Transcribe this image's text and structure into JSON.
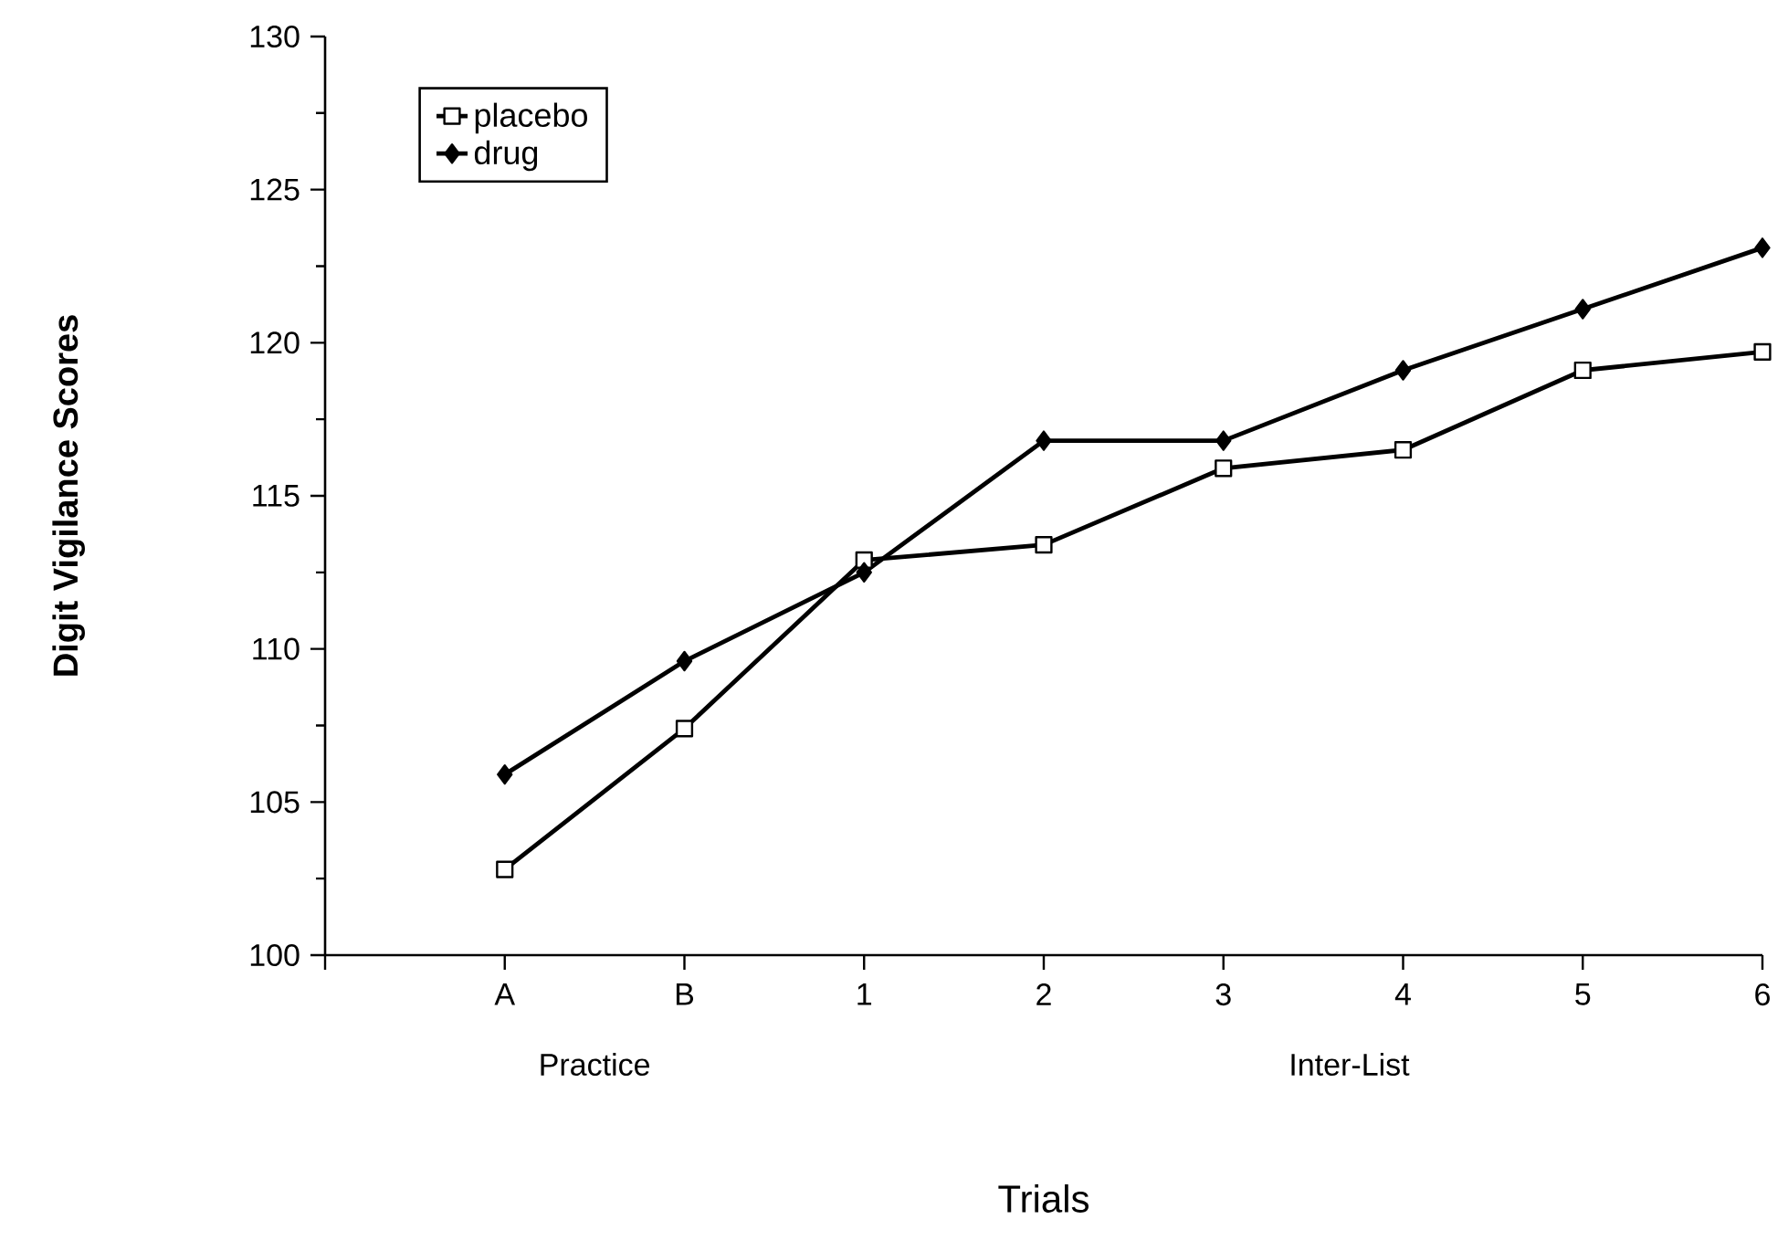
{
  "chart_data": {
    "type": "line",
    "xlabel": "Trials",
    "ylabel": "Digit Vigilance Scores",
    "categories": [
      "A",
      "B",
      "1",
      "2",
      "3",
      "4",
      "5",
      "6"
    ],
    "series": [
      {
        "name": "placebo",
        "color": "#000000",
        "marker": "square",
        "values": [
          102.8,
          107.4,
          112.9,
          113.4,
          115.9,
          116.5,
          119.1,
          119.7
        ]
      },
      {
        "name": "drug",
        "color": "#000000",
        "marker": "diamond",
        "values": [
          105.9,
          109.6,
          112.5,
          116.8,
          116.8,
          119.1,
          121.1,
          123.1
        ]
      }
    ],
    "ylim": [
      100,
      130
    ],
    "yticks": [
      100,
      105,
      110,
      115,
      120,
      125,
      130
    ],
    "annotations": [
      "Practice",
      "Inter-List"
    ],
    "legend": "top left",
    "grid": false,
    "line_style": "solid"
  }
}
